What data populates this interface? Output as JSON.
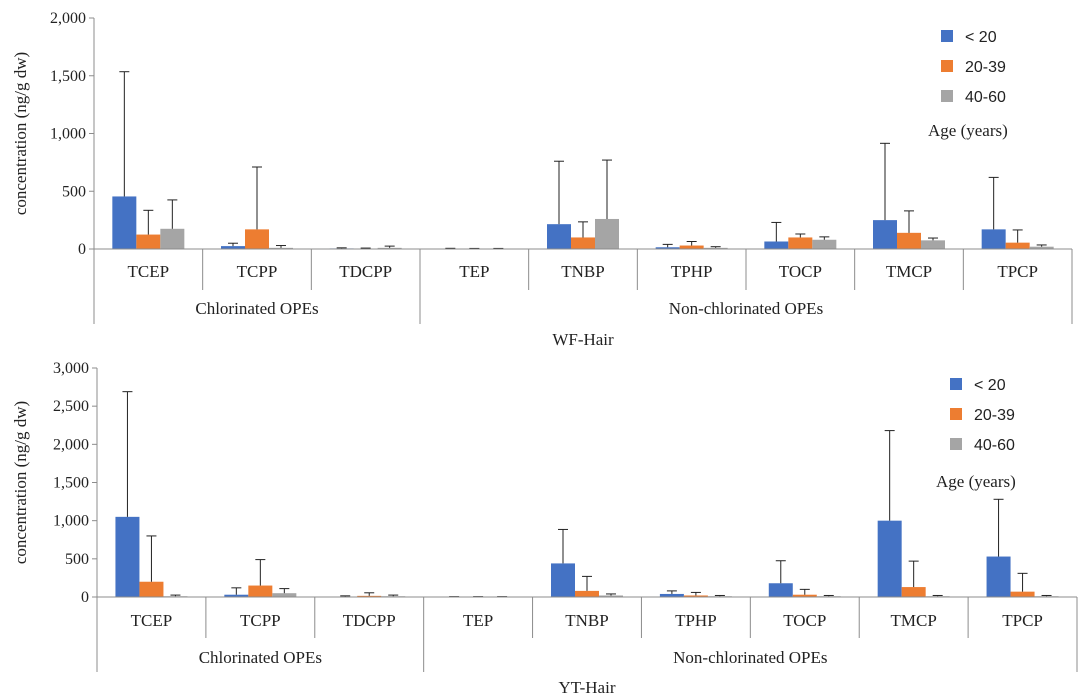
{
  "chart_data": [
    {
      "type": "bar",
      "panel_title": "WF-Hair",
      "ylabel": "concentration  (ng/g dw)",
      "ylim": [
        0,
        2000
      ],
      "yticks": [
        0,
        500,
        1000,
        1500,
        2000
      ],
      "ytick_labels": [
        "0",
        "500",
        "1,000",
        "1,500",
        "2,000"
      ],
      "categories": [
        "TCEP",
        "TCPP",
        "TDCPP",
        "TEP",
        "TNBP",
        "TPHP",
        "TOCP",
        "TMCP",
        "TPCP"
      ],
      "groups": [
        {
          "label": "Chlorinated OPEs",
          "span": [
            0,
            2
          ]
        },
        {
          "label": "Non-chlorinated OPEs",
          "span": [
            3,
            8
          ]
        }
      ],
      "legend_title": "Age (years)",
      "series": [
        {
          "name": "< 20",
          "color": "#4472C4",
          "values": [
            455,
            25,
            5,
            3,
            215,
            15,
            65,
            250,
            170
          ],
          "errors": [
            1080,
            25,
            5,
            3,
            545,
            25,
            165,
            665,
            450
          ]
        },
        {
          "name": "20-39",
          "color": "#ED7D31",
          "values": [
            125,
            170,
            3,
            2,
            100,
            30,
            100,
            140,
            55
          ],
          "errors": [
            210,
            540,
            5,
            3,
            135,
            35,
            30,
            190,
            110
          ]
        },
        {
          "name": "40-60",
          "color": "#A5A5A5",
          "values": [
            175,
            10,
            10,
            2,
            260,
            10,
            80,
            75,
            20
          ],
          "errors": [
            250,
            20,
            15,
            3,
            510,
            10,
            25,
            20,
            15
          ]
        }
      ]
    },
    {
      "type": "bar",
      "panel_title": "YT-Hair",
      "ylabel": "concentration  (ng/g dw)",
      "ylim": [
        0,
        3000
      ],
      "yticks": [
        0,
        500,
        1000,
        1500,
        2000,
        2500,
        3000
      ],
      "ytick_labels": [
        "0",
        "500",
        "1,000",
        "1,500",
        "2,000",
        "2,500",
        "3,000"
      ],
      "categories": [
        "TCEP",
        "TCPP",
        "TDCPP",
        "TEP",
        "TNBP",
        "TPHP",
        "TOCP",
        "TMCP",
        "TPCP"
      ],
      "groups": [
        {
          "label": "Chlorinated OPEs",
          "span": [
            0,
            2
          ]
        },
        {
          "label": "Non-chlorinated OPEs",
          "span": [
            3,
            8
          ]
        }
      ],
      "legend_title": "Age (years)",
      "series": [
        {
          "name": "< 20",
          "color": "#4472C4",
          "values": [
            1050,
            30,
            5,
            2,
            440,
            40,
            180,
            1000,
            530
          ],
          "errors": [
            1640,
            90,
            10,
            3,
            445,
            40,
            295,
            1180,
            750
          ]
        },
        {
          "name": "20-39",
          "color": "#ED7D31",
          "values": [
            200,
            150,
            15,
            2,
            80,
            20,
            30,
            130,
            70
          ],
          "errors": [
            600,
            340,
            40,
            3,
            190,
            40,
            70,
            340,
            240
          ]
        },
        {
          "name": "40-60",
          "color": "#A5A5A5",
          "values": [
            10,
            50,
            10,
            2,
            20,
            10,
            10,
            10,
            10
          ],
          "errors": [
            15,
            60,
            15,
            3,
            20,
            10,
            10,
            10,
            10
          ]
        }
      ]
    }
  ]
}
